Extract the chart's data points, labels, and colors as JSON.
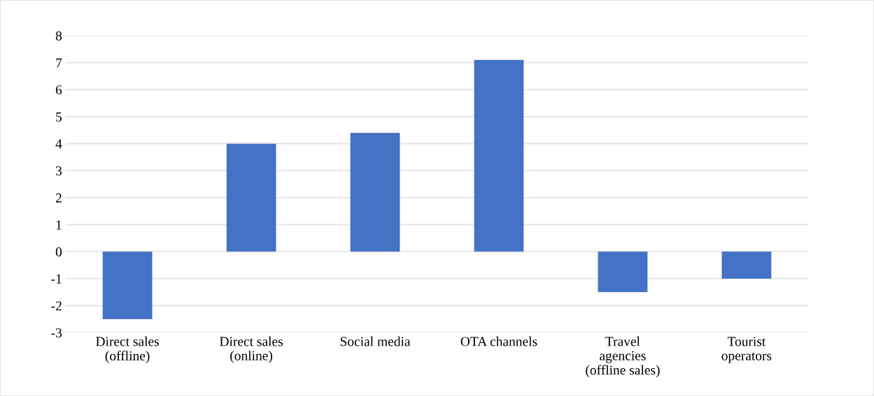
{
  "chart_data": {
    "type": "bar",
    "categories": [
      "Direct sales\n(offline)",
      "Direct sales\n(online)",
      "Social media",
      "OTA channels",
      "Travel\nagencies\n(offline sales)",
      "Tourist\noperators"
    ],
    "values": [
      -2.5,
      4.0,
      4.4,
      7.1,
      -1.5,
      -1.0
    ],
    "color": "#4472c4",
    "ylim": [
      -3,
      8
    ],
    "yticks": [
      -3,
      -2,
      -1,
      0,
      1,
      2,
      3,
      4,
      5,
      6,
      7,
      8
    ],
    "grid": "y"
  }
}
